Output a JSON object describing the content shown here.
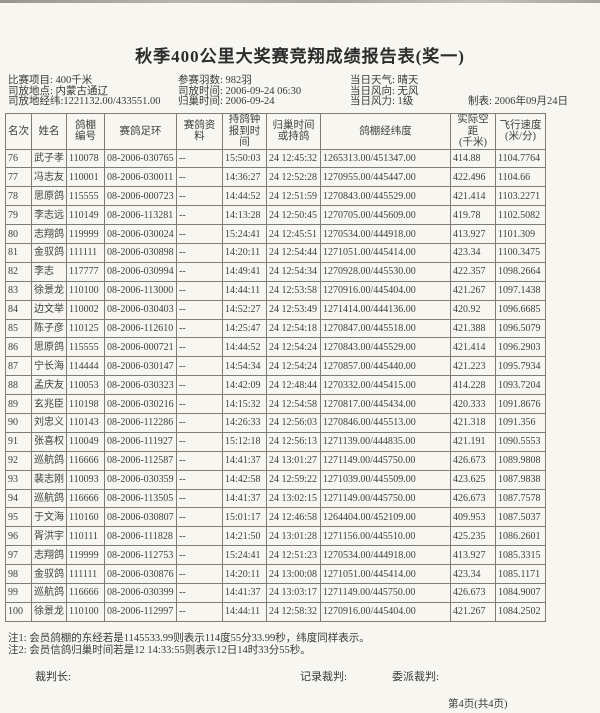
{
  "title": "秋季400公里大奖赛竞翔成绩报告表(奖一)",
  "meta": {
    "col1": [
      {
        "label": "比赛项目: ",
        "value": "400千米"
      },
      {
        "label": "司放地点: ",
        "value": "内蒙古通辽"
      },
      {
        "label": "司放地经纬:",
        "value": "1221132.00/433551.00"
      }
    ],
    "col2": [
      {
        "label": "参赛羽数: ",
        "value": "982羽"
      },
      {
        "label": "司放时间: ",
        "value": "2006-09-24  06:30"
      },
      {
        "label": "归巢时间: ",
        "value": "2006-09-24"
      }
    ],
    "col3": [
      {
        "label": "当日天气: ",
        "value": "晴天"
      },
      {
        "label": "当日风向: ",
        "value": "无风"
      },
      {
        "label": "当日风力: ",
        "value": "1级"
      }
    ],
    "maker": {
      "label": "制表: ",
      "value": "2006年09月24日"
    }
  },
  "table": {
    "keys": [
      "rank",
      "name",
      "loft-no",
      "ring",
      "info",
      "clock-time",
      "home-time",
      "coords",
      "distance",
      "speed"
    ],
    "headers": [
      "名次",
      "姓名",
      "鸽棚\n编号",
      "赛鸽足环",
      "赛鸽资料",
      "持鸽钟\n报到时间",
      "归巢时间\n或持鸽",
      "鸽棚经纬度",
      "实际空距\n(千米)",
      "飞行速度\n(米/分)"
    ],
    "rows": [
      [
        "76",
        "武子孝",
        "110078",
        "08-2006-030765",
        "--",
        "15:50:03",
        "24 12:45:32",
        "1265313.00/451347.00",
        "414.88",
        "1104.7764"
      ],
      [
        "77",
        "冯志友",
        "110001",
        "08-2006-030011",
        "--",
        "14:36:27",
        "24 12:52:28",
        "1270955.00/445447.00",
        "422.496",
        "1104.66"
      ],
      [
        "78",
        "思原鸽",
        "115555",
        "08-2006-000723",
        "--",
        "14:44:52",
        "24 12:51:59",
        "1270843.00/445529.00",
        "421.414",
        "1103.2271"
      ],
      [
        "79",
        "李志远",
        "110149",
        "08-2006-113281",
        "--",
        "14:13:28",
        "24 12:50:45",
        "1270705.00/445609.00",
        "419.78",
        "1102.5082"
      ],
      [
        "80",
        "志翔鸽",
        "119999",
        "08-2006-030024",
        "--",
        "15:24:41",
        "24 12:45:51",
        "1270534.00/444918.00",
        "413.927",
        "1101.309"
      ],
      [
        "81",
        "金驭鸽",
        "111111",
        "08-2006-030898",
        "--",
        "14:20:11",
        "24 12:54:44",
        "1271051.00/445414.00",
        "423.34",
        "1100.3475"
      ],
      [
        "82",
        "李志",
        "117777",
        "08-2006-030994",
        "--",
        "14:49:41",
        "24 12:54:34",
        "1270928.00/445530.00",
        "422.357",
        "1098.2664"
      ],
      [
        "83",
        "徐景龙",
        "110100",
        "08-2006-113000",
        "--",
        "14:44:11",
        "24 12:53:58",
        "1270916.00/445404.00",
        "421.267",
        "1097.1438"
      ],
      [
        "84",
        "边文举",
        "110002",
        "08-2006-030403",
        "--",
        "14:52:27",
        "24 12:53:49",
        "1271414.00/444136.00",
        "420.92",
        "1096.6685"
      ],
      [
        "85",
        "陈子彦",
        "110125",
        "08-2006-112610",
        "--",
        "14:25:47",
        "24 12:54:18",
        "1270847.00/445518.00",
        "421.388",
        "1096.5079"
      ],
      [
        "86",
        "思原鸽",
        "115555",
        "08-2006-000721",
        "--",
        "14:44:52",
        "24 12:54:24",
        "1270843.00/445529.00",
        "421.414",
        "1096.2903"
      ],
      [
        "87",
        "宁长海",
        "114444",
        "08-2006-030147",
        "--",
        "14:54:34",
        "24 12:54:24",
        "1270857.00/445440.00",
        "421.223",
        "1095.7934"
      ],
      [
        "88",
        "孟庆友",
        "110053",
        "08-2006-030323",
        "--",
        "14:42:09",
        "24 12:48:44",
        "1270332.00/445415.00",
        "414.228",
        "1093.7204"
      ],
      [
        "89",
        "玄兆臣",
        "110198",
        "08-2006-030216",
        "--",
        "14:15:32",
        "24 12:54:58",
        "1270817.00/445434.00",
        "420.333",
        "1091.8676"
      ],
      [
        "90",
        "刘忠义",
        "110143",
        "08-2006-112286",
        "--",
        "14:26:33",
        "24 12:56:03",
        "1270846.00/445513.00",
        "421.318",
        "1091.356"
      ],
      [
        "91",
        "张喜权",
        "110049",
        "08-2006-111927",
        "--",
        "15:12:18",
        "24 12:56:13",
        "1271139.00/444835.00",
        "421.191",
        "1090.5553"
      ],
      [
        "92",
        "巡航鸽",
        "116666",
        "08-2006-112587",
        "--",
        "14:41:37",
        "24 13:01:27",
        "1271149.00/445750.00",
        "426.673",
        "1089.9808"
      ],
      [
        "93",
        "裴志刚",
        "110093",
        "08-2006-030359",
        "--",
        "14:42:58",
        "24 12:59:22",
        "1271039.00/445509.00",
        "423.625",
        "1087.9838"
      ],
      [
        "94",
        "巡航鸽",
        "116666",
        "08-2006-113505",
        "--",
        "14:41:37",
        "24 13:02:15",
        "1271149.00/445750.00",
        "426.673",
        "1087.7578"
      ],
      [
        "95",
        "于文海",
        "110160",
        "08-2006-030807",
        "--",
        "15:01:17",
        "24 12:46:58",
        "1264404.00/452109.00",
        "409.953",
        "1087.5037"
      ],
      [
        "96",
        "胥洪宇",
        "110111",
        "08-2006-111828",
        "--",
        "14:21:50",
        "24 13:01:28",
        "1271156.00/445510.00",
        "425.235",
        "1086.2601"
      ],
      [
        "97",
        "志翔鸽",
        "119999",
        "08-2006-112753",
        "--",
        "15:24:41",
        "24 12:51:23",
        "1270534.00/444918.00",
        "413.927",
        "1085.3315"
      ],
      [
        "98",
        "金驭鸽",
        "111111",
        "08-2006-030876",
        "--",
        "14:20:11",
        "24 13:00:08",
        "1271051.00/445414.00",
        "423.34",
        "1085.1171"
      ],
      [
        "99",
        "巡航鸽",
        "116666",
        "08-2006-030399",
        "--",
        "14:41:37",
        "24 13:03:17",
        "1271149.00/445750.00",
        "426.673",
        "1084.9007"
      ],
      [
        "100",
        "徐景龙",
        "110100",
        "08-2006-112997",
        "--",
        "14:44:11",
        "24 12:58:32",
        "1270916.00/445404.00",
        "421.267",
        "1084.2502"
      ]
    ]
  },
  "notes": {
    "note1": "注1: 会员鸽棚的东经若是1145533.99则表示114度55分33.99秒，纬度同样表示。",
    "note2": "注2: 会员信鸽归巢时间若是12 14:33:55则表示12日14时33分55秒。"
  },
  "footer": {
    "chief_judge": "裁判长:",
    "record_judge": "记录裁判:",
    "assigned_judge": "委派裁判:",
    "page": "第4页(共4页)"
  }
}
